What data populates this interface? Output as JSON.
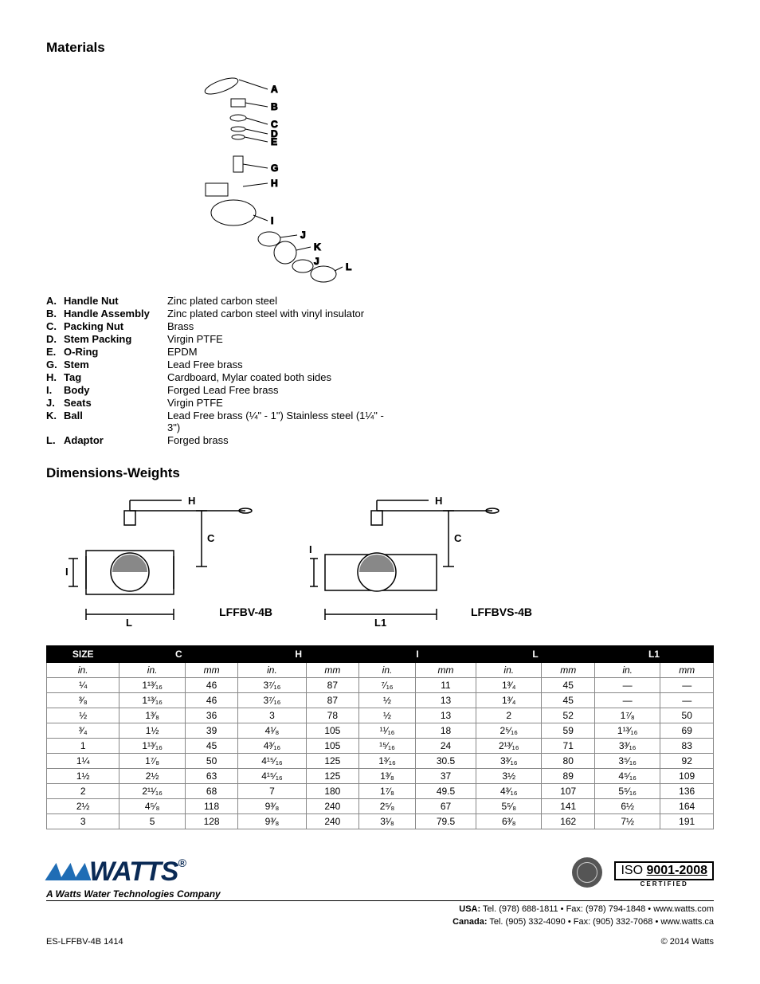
{
  "titles": {
    "materials": "Materials",
    "dimensions": "Dimensions-Weights"
  },
  "exploded_labels": [
    "A",
    "B",
    "C",
    "D",
    "E",
    "G",
    "H",
    "I",
    "J",
    "K",
    "J",
    "L"
  ],
  "materials": [
    {
      "k": "A.",
      "n": "Handle Nut",
      "m": "Zinc plated carbon steel"
    },
    {
      "k": "B.",
      "n": "Handle Assembly",
      "m": "Zinc plated carbon steel with vinyl insulator"
    },
    {
      "k": "C.",
      "n": "Packing Nut",
      "m": "Brass"
    },
    {
      "k": "D.",
      "n": "Stem Packing",
      "m": "Virgin PTFE"
    },
    {
      "k": "E.",
      "n": "O-Ring",
      "m": "EPDM"
    },
    {
      "k": "G.",
      "n": "Stem",
      "m": "Lead Free brass"
    },
    {
      "k": "H.",
      "n": "Tag",
      "m": "Cardboard, Mylar coated both sides"
    },
    {
      "k": "I.",
      "n": "Body",
      "m": "Forged Lead Free brass"
    },
    {
      "k": "J.",
      "n": "Seats",
      "m": "Virgin PTFE"
    },
    {
      "k": "K.",
      "n": "Ball",
      "m": "Lead Free brass (¼\" - 1\") Stainless steel (1¼\" - 3\")"
    },
    {
      "k": "L.",
      "n": "Adaptor",
      "m": "Forged brass"
    }
  ],
  "dim_diag": {
    "left_model": "LFFBV-4B",
    "right_model": "LFFBVS-4B",
    "labels": {
      "H": "H",
      "C": "C",
      "I": "I",
      "L": "L",
      "L1": "L1"
    }
  },
  "table": {
    "headers": [
      "SIZE",
      "C",
      "",
      "H",
      "",
      "I",
      "",
      "L",
      "",
      "L1",
      ""
    ],
    "header_groups": [
      "SIZE",
      "C",
      "H",
      "I",
      "L",
      "L1"
    ],
    "unit_row": [
      "in.",
      "in.",
      "mm",
      "in.",
      "mm",
      "in.",
      "mm",
      "in.",
      "mm",
      "in.",
      "mm"
    ],
    "rows": [
      [
        "¼",
        "1¹³⁄₁₆",
        "46",
        "3⁷⁄₁₆",
        "87",
        "⁷⁄₁₆",
        "11",
        "1³⁄₄",
        "45",
        "—",
        "—"
      ],
      [
        "³⁄₈",
        "1¹³⁄₁₆",
        "46",
        "3⁷⁄₁₆",
        "87",
        "½",
        "13",
        "1³⁄₄",
        "45",
        "—",
        "—"
      ],
      [
        "½",
        "1³⁄₈",
        "36",
        "3",
        "78",
        "½",
        "13",
        "2",
        "52",
        "1⁷⁄₈",
        "50"
      ],
      [
        "³⁄₄",
        "1½",
        "39",
        "4¹⁄₈",
        "105",
        "¹¹⁄₁₆",
        "18",
        "2⁵⁄₁₆",
        "59",
        "1¹³⁄₁₆",
        "69"
      ],
      [
        "1",
        "1¹³⁄₁₆",
        "45",
        "4³⁄₁₆",
        "105",
        "¹⁵⁄₁₆",
        "24",
        "2¹³⁄₁₆",
        "71",
        "3³⁄₁₆",
        "83"
      ],
      [
        "1¼",
        "1⁷⁄₈",
        "50",
        "4¹⁵⁄₁₆",
        "125",
        "1³⁄₁₆",
        "30.5",
        "3³⁄₁₆",
        "80",
        "3⁵⁄₁₆",
        "92"
      ],
      [
        "1½",
        "2½",
        "63",
        "4¹⁵⁄₁₆",
        "125",
        "1³⁄₈",
        "37",
        "3½",
        "89",
        "4⁵⁄₁₆",
        "109"
      ],
      [
        "2",
        "2¹¹⁄₁₆",
        "68",
        "7",
        "180",
        "1⁷⁄₈",
        "49.5",
        "4³⁄₁₆",
        "107",
        "5⁵⁄₁₆",
        "136"
      ],
      [
        "2½",
        "4⁵⁄₈",
        "118",
        "9³⁄₈",
        "240",
        "2⁵⁄₈",
        "67",
        "5⁵⁄₈",
        "141",
        "6½",
        "164"
      ],
      [
        "3",
        "5",
        "128",
        "9³⁄₈",
        "240",
        "3¹⁄₈",
        "79.5",
        "6³⁄₈",
        "162",
        "7½",
        "191"
      ]
    ]
  },
  "footer": {
    "logo": "WATTS",
    "tagline": "A Watts Water Technologies Company",
    "iso": "ISO 9001-2008",
    "iso_cert": "CERTIFIED",
    "contact_usa": "USA: Tel. (978) 688-1811 • Fax: (978) 794-1848 • www.watts.com",
    "contact_can": "Canada: Tel. (905) 332-4090 • Fax: (905) 332-7068 • www.watts.ca",
    "doc": "ES-LFFBV-4B   1414",
    "copyright": "© 2014 Watts"
  }
}
